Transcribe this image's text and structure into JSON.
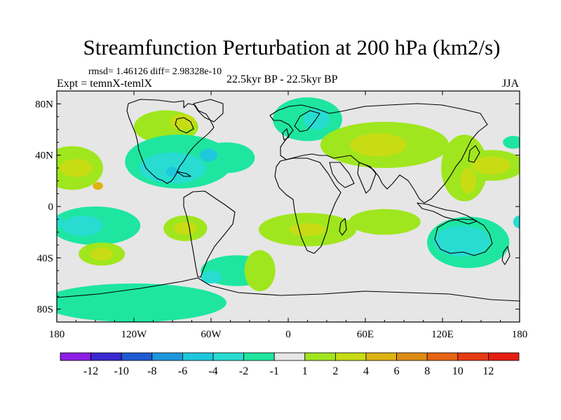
{
  "title": "Streamfunction Perturbation at 200 hPa (km2/s)",
  "stats": "rmsd= 1.46126 diff= 2.98328e-10",
  "experiment": "Expt = temnX-temlX",
  "period": "22.5kyr BP - 22.5kyr BP",
  "season": "JJA",
  "map": {
    "lon_range": [
      -180,
      180
    ],
    "lat_range": [
      -90,
      90
    ],
    "x_ticks": [
      {
        "value": -180,
        "label": "180"
      },
      {
        "value": -120,
        "label": "120W"
      },
      {
        "value": -60,
        "label": "60W"
      },
      {
        "value": 0,
        "label": "0"
      },
      {
        "value": 60,
        "label": "60E"
      },
      {
        "value": 120,
        "label": "120E"
      },
      {
        "value": 180,
        "label": "180"
      }
    ],
    "y_ticks": [
      {
        "value": 80,
        "label": "80N"
      },
      {
        "value": 40,
        "label": "40N"
      },
      {
        "value": 0,
        "label": "0"
      },
      {
        "value": -40,
        "label": "40S"
      },
      {
        "value": -80,
        "label": "80S"
      }
    ]
  },
  "colorbar": {
    "colors": [
      "#8c1ee6",
      "#3a28d2",
      "#1e5ad2",
      "#1e96dc",
      "#1ec8dc",
      "#28dcd2",
      "#1ee6a0",
      "#e6e6e6",
      "#a0e61e",
      "#c8dc14",
      "#dcb414",
      "#dc8c14",
      "#e66414",
      "#e63c14",
      "#e61e14"
    ],
    "labels": [
      "-12",
      "-10",
      "-8",
      "-6",
      "-4",
      "-2",
      "-1",
      "1",
      "2",
      "4",
      "6",
      "8",
      "10",
      "12"
    ]
  },
  "anomalies": [
    {
      "lon": -95,
      "lat": 62,
      "rx": 25,
      "ry": 13,
      "level": 2,
      "color": "#a0e61e"
    },
    {
      "lon": -82,
      "lat": 66,
      "rx": 10,
      "ry": 6,
      "level": 4,
      "color": "#c8dc14"
    },
    {
      "lon": 15,
      "lat": 68,
      "rx": 27,
      "ry": 17,
      "level": -1,
      "color": "#1ee6a0"
    },
    {
      "lon": 22,
      "lat": 68,
      "rx": 10,
      "ry": 8,
      "level": -2,
      "color": "#28dcd2"
    },
    {
      "lon": -85,
      "lat": 35,
      "rx": 42,
      "ry": 21,
      "level": -1,
      "color": "#1ee6a0"
    },
    {
      "lon": -48,
      "lat": 38,
      "rx": 22,
      "ry": 12,
      "level": -1,
      "color": "#1ee6a0"
    },
    {
      "lon": -90,
      "lat": 30,
      "rx": 26,
      "ry": 12,
      "level": -2,
      "color": "#28dcd2"
    },
    {
      "lon": -62,
      "lat": 40,
      "rx": 7,
      "ry": 5,
      "level": -4,
      "color": "#1ec8dc"
    },
    {
      "lon": -90,
      "lat": 27,
      "rx": 5,
      "ry": 4,
      "level": -4,
      "color": "#1ec8dc"
    },
    {
      "lon": -168,
      "lat": 30,
      "rx": 24,
      "ry": 17,
      "level": 2,
      "color": "#a0e61e"
    },
    {
      "lon": -165,
      "lat": 30,
      "rx": 13,
      "ry": 7,
      "level": 4,
      "color": "#c8dc14"
    },
    {
      "lon": -148,
      "lat": 16,
      "rx": 4,
      "ry": 3,
      "level": 6,
      "color": "#dcb414"
    },
    {
      "lon": 75,
      "lat": 48,
      "rx": 50,
      "ry": 18,
      "level": 2,
      "color": "#a0e61e"
    },
    {
      "lon": 137,
      "lat": 30,
      "rx": 18,
      "ry": 26,
      "level": 2,
      "color": "#a0e61e"
    },
    {
      "lon": 158,
      "lat": 32,
      "rx": 26,
      "ry": 12,
      "level": 2,
      "color": "#a0e61e"
    },
    {
      "lon": 70,
      "lat": 48,
      "rx": 22,
      "ry": 9,
      "level": 4,
      "color": "#c8dc14"
    },
    {
      "lon": 158,
      "lat": 32,
      "rx": 15,
      "ry": 7,
      "level": 4,
      "color": "#c8dc14"
    },
    {
      "lon": 140,
      "lat": 20,
      "rx": 6,
      "ry": 10,
      "level": 4,
      "color": "#c8dc14"
    },
    {
      "lon": 175,
      "lat": 50,
      "rx": 8,
      "ry": 5,
      "level": -1,
      "color": "#1ee6a0"
    },
    {
      "lon": -150,
      "lat": -15,
      "rx": 35,
      "ry": 15,
      "level": -1,
      "color": "#1ee6a0"
    },
    {
      "lon": -160,
      "lat": -15,
      "rx": 16,
      "ry": 8,
      "level": -2,
      "color": "#28dcd2"
    },
    {
      "lon": -145,
      "lat": -37,
      "rx": 18,
      "ry": 9,
      "level": 2,
      "color": "#a0e61e"
    },
    {
      "lon": -145,
      "lat": -37,
      "rx": 9,
      "ry": 5,
      "level": 4,
      "color": "#c8dc14"
    },
    {
      "lon": -80,
      "lat": -17,
      "rx": 17,
      "ry": 10,
      "level": 2,
      "color": "#a0e61e"
    },
    {
      "lon": -80,
      "lat": -17,
      "rx": 9,
      "ry": 5,
      "level": 4,
      "color": "#c8dc14"
    },
    {
      "lon": -120,
      "lat": -75,
      "rx": 72,
      "ry": 15,
      "level": -1,
      "color": "#1ee6a0"
    },
    {
      "lon": -40,
      "lat": -50,
      "rx": 28,
      "ry": 12,
      "level": -1,
      "color": "#1ee6a0"
    },
    {
      "lon": -60,
      "lat": -55,
      "rx": 8,
      "ry": 5,
      "level": -2,
      "color": "#28dcd2"
    },
    {
      "lon": -22,
      "lat": -50,
      "rx": 12,
      "ry": 16,
      "level": 2,
      "color": "#a0e61e"
    },
    {
      "lon": 15,
      "lat": -18,
      "rx": 38,
      "ry": 13,
      "level": 2,
      "color": "#a0e61e"
    },
    {
      "lon": 15,
      "lat": -18,
      "rx": 14,
      "ry": 5,
      "level": 4,
      "color": "#c8dc14"
    },
    {
      "lon": 75,
      "lat": -12,
      "rx": 28,
      "ry": 10,
      "level": 2,
      "color": "#a0e61e"
    },
    {
      "lon": 140,
      "lat": -28,
      "rx": 32,
      "ry": 20,
      "level": -1,
      "color": "#1ee6a0"
    },
    {
      "lon": 135,
      "lat": -27,
      "rx": 22,
      "ry": 12,
      "level": -2,
      "color": "#28dcd2"
    },
    {
      "lon": 180,
      "lat": -12,
      "rx": 5,
      "ry": 5,
      "level": -2,
      "color": "#28dcd2"
    },
    {
      "lon": -180,
      "lat": -12,
      "rx": 5,
      "ry": 5,
      "level": -2,
      "color": "#28dcd2"
    }
  ]
}
